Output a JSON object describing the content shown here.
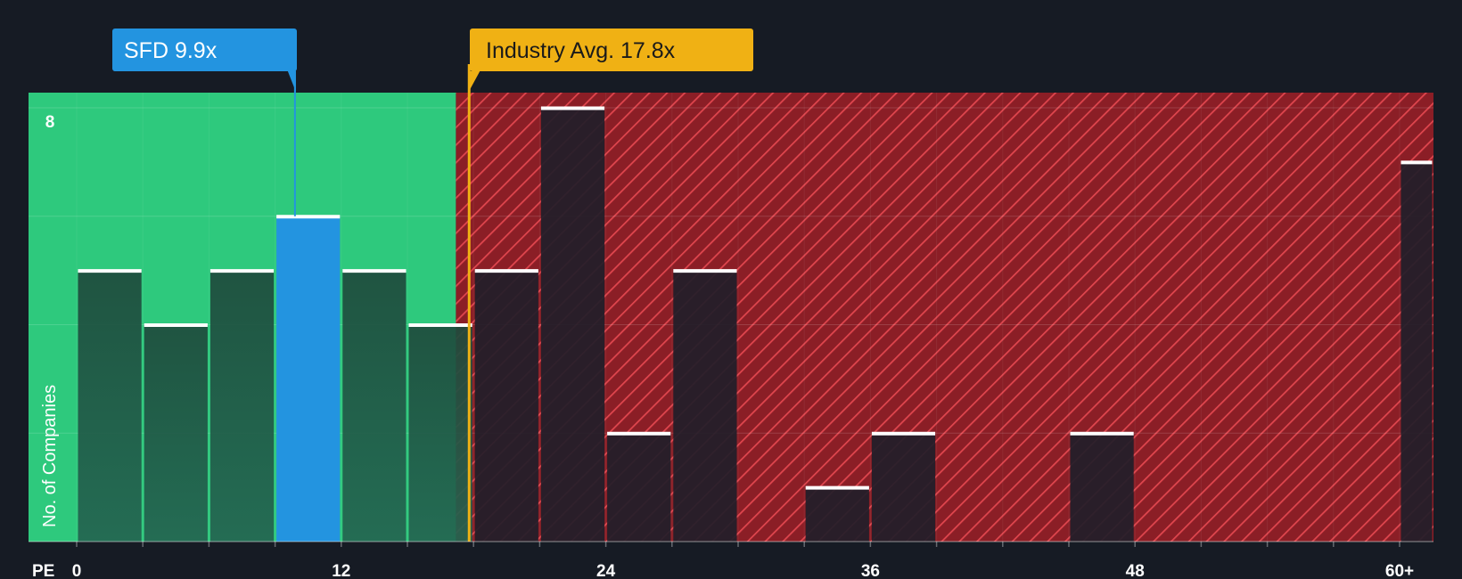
{
  "chart_data": {
    "type": "bar",
    "title": "",
    "xlabel": "PE",
    "ylabel": "No. of Companies",
    "bin_width": 3,
    "xlim": [
      -2.2,
      61.5
    ],
    "ylim": [
      0,
      8.3
    ],
    "x_ticks": [
      {
        "value": 0,
        "label": "0"
      },
      {
        "value": 12,
        "label": "12"
      },
      {
        "value": 24,
        "label": "24"
      },
      {
        "value": 36,
        "label": "36"
      },
      {
        "value": 48,
        "label": "48"
      },
      {
        "value": 60,
        "label": "60+"
      }
    ],
    "y_ticks": [
      {
        "value": 8,
        "label": "8"
      }
    ],
    "y_gridlines": [
      2,
      4,
      6,
      8
    ],
    "bins": [
      {
        "start": 0,
        "count": 5
      },
      {
        "start": 3,
        "count": 4
      },
      {
        "start": 6,
        "count": 5
      },
      {
        "start": 9,
        "count": 6,
        "highlight": true
      },
      {
        "start": 12,
        "count": 5
      },
      {
        "start": 15,
        "count": 4
      },
      {
        "start": 18,
        "count": 5
      },
      {
        "start": 21,
        "count": 8
      },
      {
        "start": 24,
        "count": 2
      },
      {
        "start": 27,
        "count": 5
      },
      {
        "start": 33,
        "count": 1
      },
      {
        "start": 36,
        "count": 2
      },
      {
        "start": 45,
        "count": 2
      },
      {
        "start": 60,
        "count": 7
      }
    ],
    "fair_zone_end": 17.2,
    "company": {
      "ticker": "SFD",
      "value": 9.9,
      "label": "SFD 9.9x",
      "color": "#2394e0"
    },
    "industry": {
      "value": 17.8,
      "label": "Industry Avg. 17.8x",
      "color": "#f0b114"
    },
    "colors": {
      "background": "#161b24",
      "fair_zone": "#2ec97d",
      "over_zone": "#8b1e26",
      "hatch": "#e0464e",
      "bar_in_fair": "#1e4a3c",
      "bar_in_over": "#211e29",
      "bar_cap": "#ffffff"
    }
  }
}
